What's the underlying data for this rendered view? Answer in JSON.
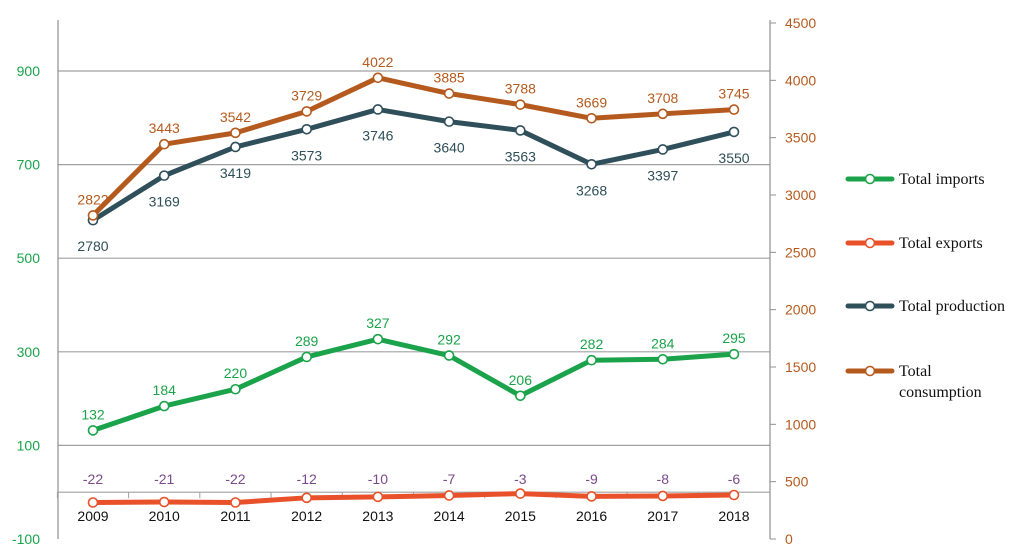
{
  "chart_data": {
    "type": "line",
    "categories": [
      "2009",
      "2010",
      "2011",
      "2012",
      "2013",
      "2014",
      "2015",
      "2016",
      "2017",
      "2018"
    ],
    "y_left": {
      "ticks": [
        "900",
        "700",
        "500",
        "300",
        "100",
        "-100"
      ],
      "ylim": [
        -100,
        1000
      ]
    },
    "y_right": {
      "ticks": [
        "4500",
        "4000",
        "3500",
        "3000",
        "2500",
        "2000",
        "1500",
        "1000",
        "500",
        "0"
      ],
      "ylim": [
        0,
        4500
      ]
    },
    "grid": true,
    "legend_position": "right",
    "series": [
      {
        "name": "Total imports",
        "axis": "left",
        "color": "#1aa34a",
        "label_color": "#1aa34a",
        "values": [
          132,
          184,
          220,
          289,
          327,
          292,
          206,
          282,
          284,
          295
        ],
        "labels": [
          "132",
          "184",
          "220",
          "289",
          "327",
          "292",
          "206",
          "282",
          "284",
          "295"
        ]
      },
      {
        "name": "Total exports",
        "axis": "left",
        "color": "#e8512a",
        "label_color": "#7a4a8a",
        "values": [
          -22,
          -21,
          -22,
          -12,
          -10,
          -7,
          -3,
          -9,
          -8,
          -6
        ],
        "labels": [
          "-22",
          "-21",
          "-22",
          "-12",
          "-10",
          "-7",
          "-3",
          "-9",
          "-8",
          "-6"
        ]
      },
      {
        "name": "Total production",
        "axis": "right",
        "color": "#2f4f5a",
        "label_color": "#2f4f5a",
        "values": [
          2780,
          3169,
          3419,
          3573,
          3746,
          3640,
          3563,
          3268,
          3397,
          3550
        ],
        "labels": [
          "2780",
          "3169",
          "3419",
          "3573",
          "3746",
          "3640",
          "3563",
          "3268",
          "3397",
          "3550"
        ]
      },
      {
        "name": "Total consumption",
        "axis": "right",
        "color": "#b55a1e",
        "label_color": "#b55a1e",
        "values": [
          2822,
          3443,
          3542,
          3729,
          4022,
          3885,
          3788,
          3669,
          3708,
          3745
        ],
        "labels": [
          "2822",
          "3443",
          "3542",
          "3729",
          "4022",
          "3885",
          "3788",
          "3669",
          "3708",
          "3745"
        ]
      }
    ],
    "legend": [
      {
        "lines": [
          "Total imports"
        ],
        "color": "#1aa34a"
      },
      {
        "lines": [
          "Total exports"
        ],
        "color": "#e8512a"
      },
      {
        "lines": [
          "Total production"
        ],
        "color": "#2f4f5a"
      },
      {
        "lines": [
          "Total",
          "consumption"
        ],
        "color": "#b55a1e"
      }
    ]
  },
  "colors": {
    "left_axis_labels": "#1aa34a",
    "right_axis_labels": "#b55a1e",
    "gridline": "#a0a0a0",
    "axis_line": "#909090"
  }
}
